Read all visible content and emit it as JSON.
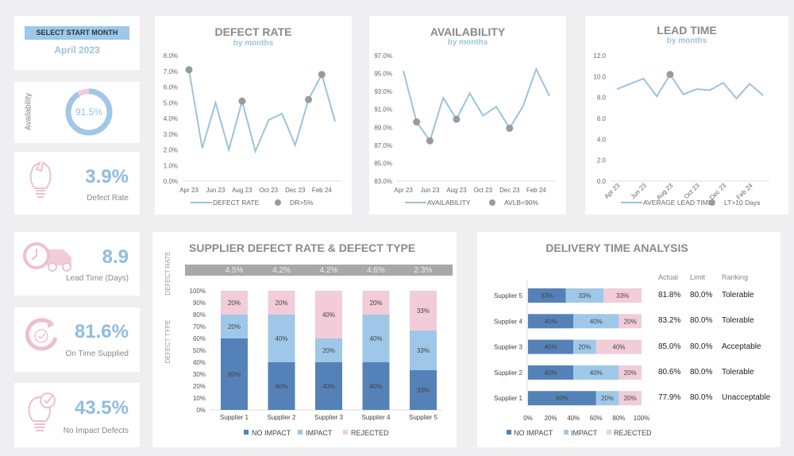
{
  "selector": {
    "label": "SELECT START MONTH",
    "value": "April 2023"
  },
  "kpis": {
    "availability": {
      "label": "Availability",
      "value": "91.5%",
      "fraction": 0.915
    },
    "defect_rate": {
      "label": "Defect Rate",
      "value": "3.9%",
      "icon": "lightbulb-broken-icon"
    },
    "lead_time": {
      "label": "Lead Time (Days)",
      "value": "8.9",
      "icon": "clock-truck-icon"
    },
    "on_time": {
      "label": "On Time Supplied",
      "value": "81.6%",
      "icon": "refresh-check-icon"
    },
    "no_impact": {
      "label": "No Impact Defects",
      "value": "43.5%",
      "icon": "lightbulb-check-icon"
    }
  },
  "colors": {
    "line": "#9cc3dd",
    "marker": "#9a9a9a",
    "no_impact": "#5482b8",
    "impact": "#9fc8e8",
    "rejected": "#f2ccd9",
    "pink_icon": "#ecc1cd"
  },
  "chart_data": [
    {
      "type": "line",
      "title": "DEFECT RATE",
      "subtitle": "by months",
      "x": [
        "Apr 23",
        "May 23",
        "Jun 23",
        "Jul 23",
        "Aug 23",
        "Sep 23",
        "Oct 23",
        "Nov 23",
        "Dec 23",
        "Jan 24",
        "Feb 24",
        "Mar 24"
      ],
      "x_tick_labels": [
        "Apr 23",
        "Jun 23",
        "Aug 23",
        "Oct 23",
        "Dec 23",
        "Feb 24"
      ],
      "values": [
        7.1,
        2.1,
        5.0,
        2.0,
        5.1,
        1.9,
        3.9,
        4.3,
        2.3,
        5.2,
        6.8,
        3.8
      ],
      "ylim": [
        0,
        8
      ],
      "y_ticks": [
        "0.0%",
        "1.0%",
        "2.0%",
        "3.0%",
        "4.0%",
        "5.0%",
        "6.0%",
        "7.0%",
        "8.0%"
      ],
      "threshold": 5,
      "flag": "above",
      "legend": [
        "DEFECT RATE",
        "DR>5%"
      ]
    },
    {
      "type": "line",
      "title": "AVAILABILITY",
      "subtitle": "by months",
      "x": [
        "Apr 23",
        "May 23",
        "Jun 23",
        "Jul 23",
        "Aug 23",
        "Sep 23",
        "Oct 23",
        "Nov 23",
        "Dec 23",
        "Jan 24",
        "Feb 24",
        "Mar 24"
      ],
      "x_tick_labels": [
        "Apr 23",
        "Jun 23",
        "Aug 23",
        "Oct 23",
        "Dec 23",
        "Feb 24"
      ],
      "values": [
        95.3,
        89.6,
        87.5,
        92.3,
        89.9,
        92.8,
        90.3,
        91.3,
        88.9,
        91.3,
        95.5,
        92.5
      ],
      "ylim": [
        83,
        97
      ],
      "y_ticks": [
        "83.0%",
        "85.0%",
        "87.0%",
        "89.0%",
        "91.0%",
        "93.0%",
        "95.0%",
        "97.0%"
      ],
      "threshold": 90,
      "flag": "below",
      "legend": [
        "AVAILABILITY",
        "AVLB<90%"
      ]
    },
    {
      "type": "line",
      "title": "LEAD TIME",
      "subtitle": "by months",
      "x": [
        "Apr 23",
        "May 23",
        "Jun 23",
        "Jul 23",
        "Aug 23",
        "Sep 23",
        "Oct 23",
        "Nov 23",
        "Dec 23",
        "Jan 24",
        "Feb 24",
        "Mar 24"
      ],
      "x_tick_labels": [
        "Apr 23",
        "Jun 23",
        "Aug 23",
        "Oct 23",
        "Dec 23",
        "Feb 24"
      ],
      "values": [
        8.8,
        9.3,
        9.8,
        8.1,
        10.2,
        8.3,
        8.8,
        8.7,
        9.4,
        7.9,
        9.3,
        8.2
      ],
      "ylim": [
        0,
        12
      ],
      "y_ticks": [
        "0.0",
        "2.0",
        "4.0",
        "6.0",
        "8.0",
        "10.0",
        "12.0"
      ],
      "threshold": 10,
      "flag": "above",
      "legend": [
        "AVERAGE LEAD TIME",
        "LT>10 Days"
      ]
    },
    {
      "type": "bar",
      "stacked": true,
      "title": "SUPPLIER DEFECT RATE & DEFECT TYPE",
      "ylabel_top": "DEFECT RATE",
      "ylabel": "DEFECT TYPE",
      "categories": [
        "Supplier 1",
        "Supplier 2",
        "Supplier 3",
        "Supplier 4",
        "Supplier 5"
      ],
      "defect_rates": [
        "4.5%",
        "4.2%",
        "4.2%",
        "4.6%",
        "2.3%"
      ],
      "y_ticks": [
        "0%",
        "10%",
        "20%",
        "30%",
        "40%",
        "50%",
        "60%",
        "70%",
        "80%",
        "90%",
        "100%"
      ],
      "series": [
        {
          "name": "NO IMPACT",
          "values": [
            60,
            40,
            40,
            40,
            33
          ]
        },
        {
          "name": "IMPACT",
          "values": [
            20,
            40,
            20,
            40,
            33
          ]
        },
        {
          "name": "REJECTED",
          "values": [
            20,
            20,
            40,
            20,
            33
          ]
        }
      ]
    },
    {
      "type": "bar",
      "orientation": "horizontal",
      "stacked": true,
      "title": "DELIVERY TIME ANALYSIS",
      "categories": [
        "Supplier 5",
        "Supplier 4",
        "Supplier 3",
        "Supplier 2",
        "Supplier 1"
      ],
      "x_ticks": [
        "0%",
        "20%",
        "40%",
        "60%",
        "80%",
        "100%"
      ],
      "series": [
        {
          "name": "NO IMPACT",
          "values": [
            33,
            40,
            40,
            40,
            60
          ]
        },
        {
          "name": "IMPACT",
          "values": [
            33,
            40,
            20,
            40,
            20
          ]
        },
        {
          "name": "REJECTED",
          "values": [
            33,
            20,
            40,
            20,
            20
          ]
        }
      ],
      "table": {
        "headers": [
          "Actual",
          "Limit",
          "Ranking"
        ],
        "rows": [
          [
            "81.8%",
            "80.0%",
            "Tolerable"
          ],
          [
            "83.2%",
            "80.0%",
            "Tolerable"
          ],
          [
            "85.0%",
            "80.0%",
            "Acceptable"
          ],
          [
            "80.6%",
            "80.0%",
            "Tolerable"
          ],
          [
            "77.9%",
            "80.0%",
            "Unacceptable"
          ]
        ]
      }
    }
  ]
}
